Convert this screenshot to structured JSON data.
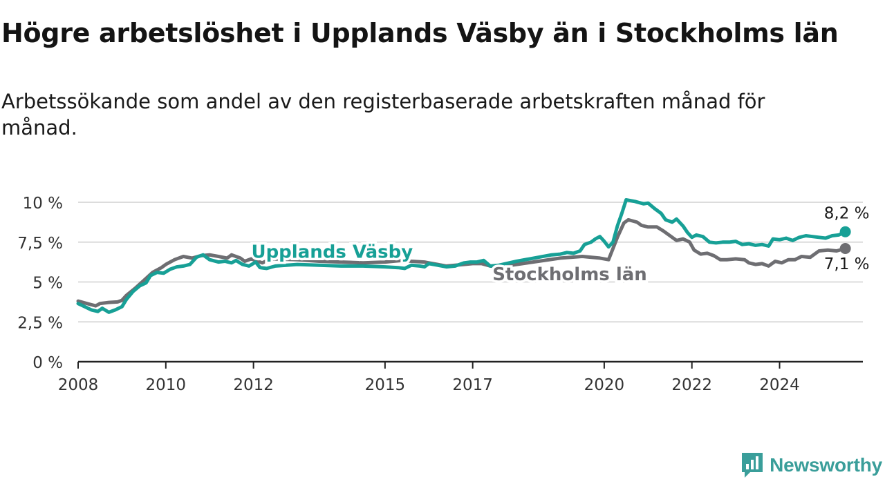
{
  "header": {
    "title": "Högre arbetslöshet i Upplands Väsby än i Stockholms län",
    "subtitle": "Arbetssökande som andel av den registerbaserade arbetskraften månad för månad."
  },
  "brand": {
    "name": "Newsworthy",
    "icon": "newsworthy-logo-icon",
    "color": "#3a9e9a"
  },
  "chart_data": {
    "type": "line",
    "title": "Högre arbetslöshet i Upplands Väsby än i Stockholms län",
    "subtitle": "Arbetssökande som andel av den registerbaserade arbetskraften månad för månad.",
    "xlabel": "",
    "ylabel": "",
    "ylim": [
      0,
      10
    ],
    "xlim": [
      2008,
      2025.9
    ],
    "y_ticks": [
      0,
      2.5,
      5,
      7.5,
      10
    ],
    "y_tick_labels": [
      "0 %",
      "2,5 %",
      "5 %",
      "7,5 %",
      "10 %"
    ],
    "x_ticks": [
      2008,
      2010,
      2012,
      2015,
      2017,
      2020,
      2022,
      2024
    ],
    "x_tick_labels": [
      "2008",
      "2010",
      "2012",
      "2015",
      "2017",
      "2020",
      "2022",
      "2024"
    ],
    "grid": true,
    "legend": "inline labels",
    "series": [
      {
        "name": "Stockholms län",
        "color": "#6e6e72",
        "end_label": "7,1 %",
        "points": [
          [
            2008.0,
            3.8
          ],
          [
            2008.2,
            3.65
          ],
          [
            2008.4,
            3.5
          ],
          [
            2008.5,
            3.65
          ],
          [
            2008.7,
            3.72
          ],
          [
            2008.9,
            3.75
          ],
          [
            2009.0,
            3.85
          ],
          [
            2009.1,
            4.15
          ],
          [
            2009.3,
            4.6
          ],
          [
            2009.5,
            5.1
          ],
          [
            2009.7,
            5.6
          ],
          [
            2009.9,
            5.9
          ],
          [
            2010.0,
            6.1
          ],
          [
            2010.2,
            6.4
          ],
          [
            2010.4,
            6.6
          ],
          [
            2010.6,
            6.5
          ],
          [
            2010.8,
            6.65
          ],
          [
            2011.0,
            6.7
          ],
          [
            2011.2,
            6.6
          ],
          [
            2011.4,
            6.5
          ],
          [
            2011.5,
            6.7
          ],
          [
            2011.7,
            6.5
          ],
          [
            2011.8,
            6.3
          ],
          [
            2011.95,
            6.45
          ],
          [
            2012.0,
            6.4
          ],
          [
            2012.2,
            6.2
          ],
          [
            2012.4,
            6.45
          ],
          [
            2013.0,
            6.4
          ],
          [
            2013.5,
            6.3
          ],
          [
            2014.0,
            6.25
          ],
          [
            2014.5,
            6.2
          ],
          [
            2015.0,
            6.25
          ],
          [
            2015.4,
            6.35
          ],
          [
            2015.6,
            6.3
          ],
          [
            2015.9,
            6.25
          ],
          [
            2016.0,
            6.2
          ],
          [
            2016.2,
            6.1
          ],
          [
            2016.4,
            6.0
          ],
          [
            2016.6,
            6.05
          ],
          [
            2016.8,
            6.1
          ],
          [
            2017.0,
            6.15
          ],
          [
            2017.2,
            6.15
          ],
          [
            2017.4,
            6.0
          ],
          [
            2017.6,
            5.95
          ],
          [
            2018.0,
            6.1
          ],
          [
            2018.5,
            6.3
          ],
          [
            2019.0,
            6.5
          ],
          [
            2019.5,
            6.6
          ],
          [
            2019.9,
            6.5
          ],
          [
            2020.1,
            6.4
          ],
          [
            2020.2,
            7.1
          ],
          [
            2020.3,
            7.8
          ],
          [
            2020.45,
            8.7
          ],
          [
            2020.55,
            8.9
          ],
          [
            2020.75,
            8.75
          ],
          [
            2020.85,
            8.55
          ],
          [
            2021.0,
            8.45
          ],
          [
            2021.2,
            8.45
          ],
          [
            2021.35,
            8.2
          ],
          [
            2021.5,
            7.9
          ],
          [
            2021.65,
            7.6
          ],
          [
            2021.8,
            7.7
          ],
          [
            2021.95,
            7.5
          ],
          [
            2022.05,
            7.0
          ],
          [
            2022.2,
            6.75
          ],
          [
            2022.35,
            6.8
          ],
          [
            2022.5,
            6.65
          ],
          [
            2022.65,
            6.4
          ],
          [
            2022.8,
            6.4
          ],
          [
            2023.0,
            6.45
          ],
          [
            2023.2,
            6.4
          ],
          [
            2023.3,
            6.2
          ],
          [
            2023.45,
            6.1
          ],
          [
            2023.6,
            6.15
          ],
          [
            2023.75,
            6.0
          ],
          [
            2023.9,
            6.3
          ],
          [
            2024.05,
            6.2
          ],
          [
            2024.2,
            6.4
          ],
          [
            2024.35,
            6.4
          ],
          [
            2024.5,
            6.6
          ],
          [
            2024.7,
            6.55
          ],
          [
            2024.9,
            6.95
          ],
          [
            2025.1,
            7.0
          ],
          [
            2025.3,
            6.95
          ],
          [
            2025.5,
            7.1
          ]
        ]
      },
      {
        "name": "Upplands Väsby",
        "color": "#17a096",
        "end_label": "8,2 %",
        "points": [
          [
            2008.0,
            3.65
          ],
          [
            2008.15,
            3.45
          ],
          [
            2008.3,
            3.25
          ],
          [
            2008.45,
            3.15
          ],
          [
            2008.55,
            3.35
          ],
          [
            2008.7,
            3.1
          ],
          [
            2008.85,
            3.25
          ],
          [
            2009.0,
            3.45
          ],
          [
            2009.1,
            3.9
          ],
          [
            2009.25,
            4.4
          ],
          [
            2009.4,
            4.75
          ],
          [
            2009.55,
            4.95
          ],
          [
            2009.65,
            5.4
          ],
          [
            2009.8,
            5.6
          ],
          [
            2009.95,
            5.55
          ],
          [
            2010.1,
            5.8
          ],
          [
            2010.25,
            5.95
          ],
          [
            2010.4,
            6.0
          ],
          [
            2010.55,
            6.1
          ],
          [
            2010.7,
            6.55
          ],
          [
            2010.85,
            6.7
          ],
          [
            2011.0,
            6.4
          ],
          [
            2011.2,
            6.25
          ],
          [
            2011.35,
            6.3
          ],
          [
            2011.5,
            6.2
          ],
          [
            2011.6,
            6.35
          ],
          [
            2011.75,
            6.1
          ],
          [
            2011.9,
            6.0
          ],
          [
            2012.05,
            6.25
          ],
          [
            2012.15,
            5.9
          ],
          [
            2012.3,
            5.85
          ],
          [
            2012.5,
            6.0
          ],
          [
            2013.0,
            6.1
          ],
          [
            2013.5,
            6.05
          ],
          [
            2014.0,
            6.0
          ],
          [
            2014.5,
            6.0
          ],
          [
            2015.0,
            5.95
          ],
          [
            2015.3,
            5.9
          ],
          [
            2015.45,
            5.85
          ],
          [
            2015.6,
            6.05
          ],
          [
            2015.8,
            6.0
          ],
          [
            2015.9,
            5.95
          ],
          [
            2016.0,
            6.15
          ],
          [
            2016.2,
            6.05
          ],
          [
            2016.4,
            5.95
          ],
          [
            2016.6,
            6.0
          ],
          [
            2016.8,
            6.2
          ],
          [
            2016.95,
            6.25
          ],
          [
            2017.1,
            6.25
          ],
          [
            2017.25,
            6.35
          ],
          [
            2017.4,
            6.0
          ],
          [
            2017.6,
            6.05
          ],
          [
            2018.0,
            6.3
          ],
          [
            2018.5,
            6.55
          ],
          [
            2018.8,
            6.7
          ],
          [
            2019.0,
            6.75
          ],
          [
            2019.15,
            6.85
          ],
          [
            2019.3,
            6.8
          ],
          [
            2019.45,
            6.95
          ],
          [
            2019.55,
            7.35
          ],
          [
            2019.7,
            7.5
          ],
          [
            2019.8,
            7.7
          ],
          [
            2019.9,
            7.85
          ],
          [
            2020.0,
            7.55
          ],
          [
            2020.1,
            7.2
          ],
          [
            2020.2,
            7.5
          ],
          [
            2020.3,
            8.5
          ],
          [
            2020.4,
            9.3
          ],
          [
            2020.5,
            10.15
          ],
          [
            2020.7,
            10.05
          ],
          [
            2020.9,
            9.9
          ],
          [
            2021.0,
            9.95
          ],
          [
            2021.15,
            9.6
          ],
          [
            2021.3,
            9.3
          ],
          [
            2021.4,
            8.9
          ],
          [
            2021.55,
            8.75
          ],
          [
            2021.65,
            8.95
          ],
          [
            2021.8,
            8.5
          ],
          [
            2021.9,
            8.1
          ],
          [
            2022.0,
            7.8
          ],
          [
            2022.1,
            7.95
          ],
          [
            2022.25,
            7.85
          ],
          [
            2022.4,
            7.5
          ],
          [
            2022.55,
            7.45
          ],
          [
            2022.7,
            7.5
          ],
          [
            2022.85,
            7.5
          ],
          [
            2023.0,
            7.55
          ],
          [
            2023.15,
            7.35
          ],
          [
            2023.3,
            7.4
          ],
          [
            2023.45,
            7.3
          ],
          [
            2023.6,
            7.35
          ],
          [
            2023.75,
            7.25
          ],
          [
            2023.85,
            7.7
          ],
          [
            2024.0,
            7.65
          ],
          [
            2024.15,
            7.75
          ],
          [
            2024.3,
            7.6
          ],
          [
            2024.45,
            7.8
          ],
          [
            2024.6,
            7.9
          ],
          [
            2024.75,
            7.85
          ],
          [
            2024.9,
            7.8
          ],
          [
            2025.05,
            7.75
          ],
          [
            2025.2,
            7.9
          ],
          [
            2025.35,
            7.95
          ],
          [
            2025.5,
            8.15
          ]
        ]
      }
    ],
    "annotations": [
      {
        "text": "Upplands Väsby",
        "series": "Upplands Väsby",
        "at": [
          2011.95,
          6.9
        ]
      },
      {
        "text": "Stockholms län",
        "series": "Stockholms län",
        "at": [
          2017.45,
          5.5
        ]
      }
    ]
  }
}
